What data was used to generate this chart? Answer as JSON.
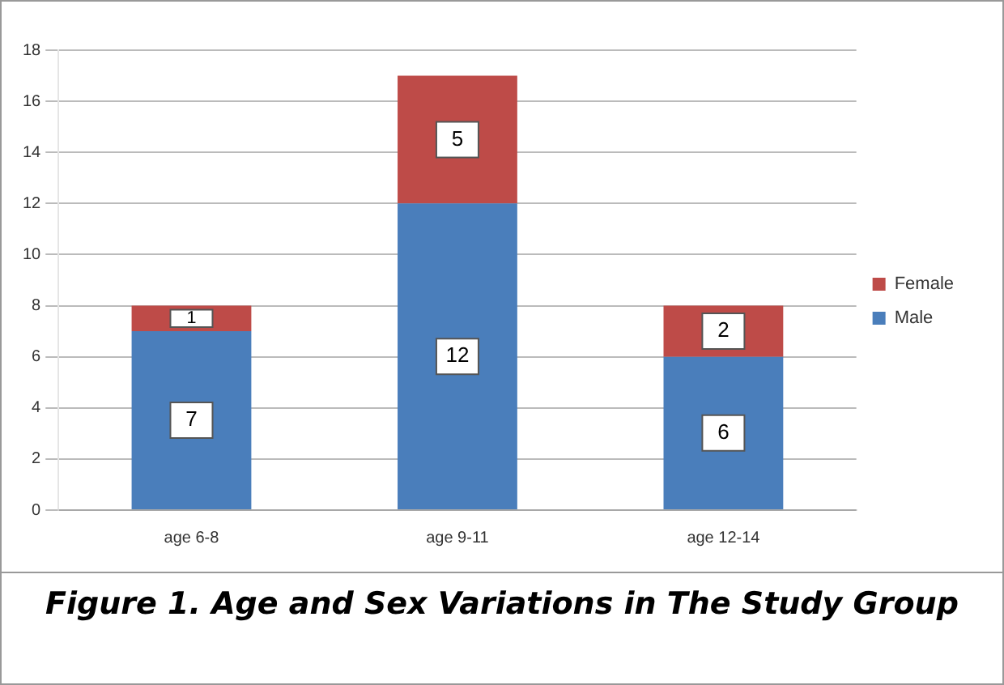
{
  "chart_data": {
    "type": "bar",
    "title": "Figure 1. Age and Sex Variations in The Study Group",
    "categories": [
      "age 6-8",
      "age 9-11",
      "age 12-14"
    ],
    "stacked": true,
    "series": [
      {
        "name": "Male",
        "color": "#4a7ebb",
        "values": [
          7,
          12,
          6
        ]
      },
      {
        "name": "Female",
        "color": "#be4b48",
        "values": [
          1,
          5,
          2
        ]
      }
    ],
    "ylim": [
      0,
      18
    ],
    "yticks": [
      0,
      2,
      4,
      6,
      8,
      10,
      12,
      14,
      16,
      18
    ],
    "grid": "y",
    "legend": "right",
    "data_labels": true
  }
}
